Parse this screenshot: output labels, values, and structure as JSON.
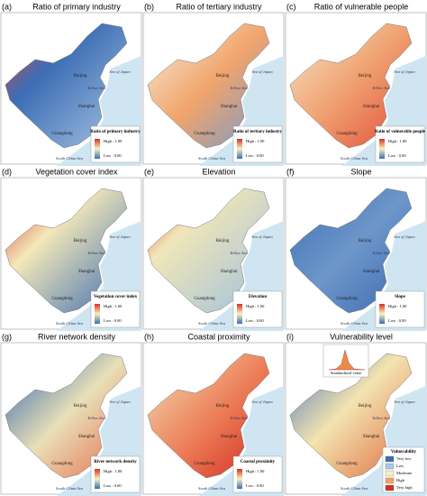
{
  "panels": [
    {
      "label": "(a)",
      "title": "Ratio of primary industry",
      "legend_title": "Ratio of primary industry",
      "high": "High : 1.00",
      "low": "Low : 0.00"
    },
    {
      "label": "(b)",
      "title": "Ratio of tertiary industry",
      "legend_title": "Ratio of tertiary industry",
      "high": "High : 1.00",
      "low": "Low : 0.00"
    },
    {
      "label": "(c)",
      "title": "Ratio of vulnerable people",
      "legend_title": "Ratio of vulnerable people",
      "high": "High : 1.00",
      "low": "Low : 0.00"
    },
    {
      "label": "(d)",
      "title": "Vegetation cover index",
      "legend_title": "Vegetation cover index",
      "high": "High : 1.00",
      "low": "Low : 0.00"
    },
    {
      "label": "(e)",
      "title": "Elevation",
      "legend_title": "Elevation",
      "high": "High : 1.00",
      "low": "Low : 0.00"
    },
    {
      "label": "(f)",
      "title": "Slope",
      "legend_title": "Slope",
      "high": "High : 1.00",
      "low": "Low : 0.00"
    },
    {
      "label": "(g)",
      "title": "River network density",
      "legend_title": "River network density",
      "high": "High : 1.00",
      "low": "Low : 0.00"
    },
    {
      "label": "(h)",
      "title": "Coastal proximity",
      "legend_title": "Coastal proximity",
      "high": "High : 1.00",
      "low": "Low : 0.00"
    },
    {
      "label": "(i)",
      "title": "Vulnerability level",
      "legend_title": "Vulnerability",
      "legend_items": [
        "Very low",
        "Low",
        "Moderate",
        "High",
        "Very high"
      ],
      "inset_xlabel": "Standardized value"
    }
  ],
  "places": {
    "beijing": "Beijing",
    "yellow_sea": "Yellow Sea",
    "sea_of_japan": "Sea of Japan",
    "shanghai": "Shanghai",
    "guangdong": "Guangdong",
    "south_china_sea": "South China Sea"
  }
}
